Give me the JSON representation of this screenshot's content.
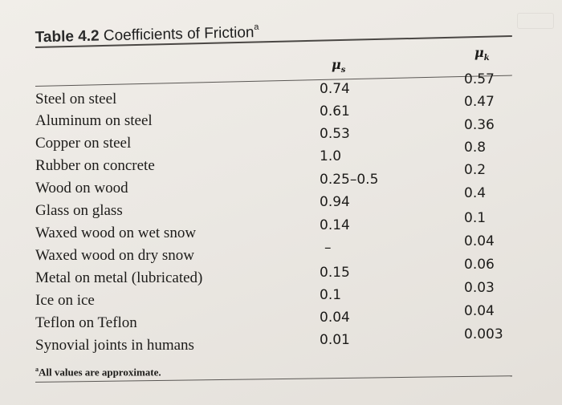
{
  "table": {
    "title_number": "Table 4.2",
    "title_text": "Coefficients of Friction",
    "title_marker": "a",
    "col_static_symbol": "μ",
    "col_static_sub": "s",
    "col_kinetic_symbol": "μ",
    "col_kinetic_sub": "k",
    "rows": [
      {
        "material": "Steel on steel",
        "mu_s": "0.74",
        "mu_k": "0.57"
      },
      {
        "material": "Aluminum on steel",
        "mu_s": "0.61",
        "mu_k": "0.47"
      },
      {
        "material": "Copper on steel",
        "mu_s": "0.53",
        "mu_k": "0.36"
      },
      {
        "material": "Rubber on concrete",
        "mu_s": "1.0",
        "mu_k": "0.8"
      },
      {
        "material": "Wood on wood",
        "mu_s": "0.25–0.5",
        "mu_k": "0.2"
      },
      {
        "material": "Glass on glass",
        "mu_s": "0.94",
        "mu_k": "0.4"
      },
      {
        "material": "Waxed wood on wet snow",
        "mu_s": "0.14",
        "mu_k": "0.1"
      },
      {
        "material": "Waxed wood on dry snow",
        "mu_s": "–",
        "mu_k": "0.04"
      },
      {
        "material": "Metal on metal (lubricated)",
        "mu_s": "0.15",
        "mu_k": "0.06"
      },
      {
        "material": "Ice on ice",
        "mu_s": "0.1",
        "mu_k": "0.03"
      },
      {
        "material": "Teflon on Teflon",
        "mu_s": "0.04",
        "mu_k": "0.04"
      },
      {
        "material": "Synovial joints in humans",
        "mu_s": "0.01",
        "mu_k": "0.003"
      }
    ],
    "footnote_marker": "a",
    "footnote_text": "All values are approximate."
  }
}
